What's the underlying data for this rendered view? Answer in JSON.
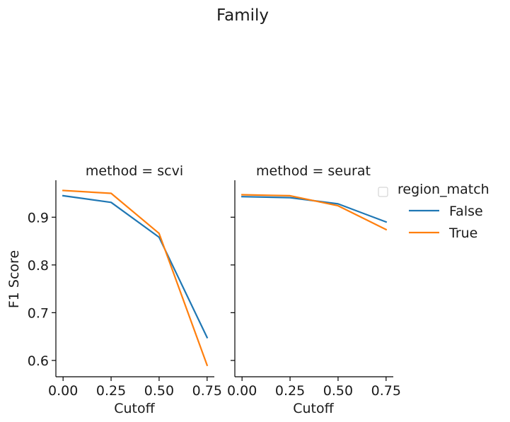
{
  "title": "Family",
  "chart_data": [
    {
      "type": "line",
      "title": "method = scvi",
      "xlabel": "Cutoff",
      "ylabel": "F1 Score",
      "xticks": [
        "0.00",
        "0.25",
        "0.50",
        "0.75"
      ],
      "yticks": [
        "0.6",
        "0.7",
        "0.8",
        "0.9"
      ],
      "xlim": [
        -0.0375,
        0.7875
      ],
      "ylim": [
        0.5658,
        0.9774
      ],
      "series": [
        {
          "name": "False",
          "color": "#1f77b4",
          "x": [
            0.0,
            0.25,
            0.5,
            0.75
          ],
          "y": [
            0.945,
            0.931,
            0.858,
            0.648
          ]
        },
        {
          "name": "True",
          "color": "#ff7f0e",
          "x": [
            0.0,
            0.25,
            0.5,
            0.75
          ],
          "y": [
            0.956,
            0.95,
            0.866,
            0.59
          ]
        }
      ]
    },
    {
      "type": "line",
      "title": "method = seurat",
      "xlabel": "Cutoff",
      "ylabel": "",
      "xticks": [
        "0.00",
        "0.25",
        "0.50",
        "0.75"
      ],
      "yticks": [],
      "xlim": [
        -0.0375,
        0.7875
      ],
      "ylim": [
        0.5658,
        0.9774
      ],
      "series": [
        {
          "name": "False",
          "color": "#1f77b4",
          "x": [
            0.0,
            0.25,
            0.5,
            0.75
          ],
          "y": [
            0.943,
            0.941,
            0.928,
            0.89
          ]
        },
        {
          "name": "True",
          "color": "#ff7f0e",
          "x": [
            0.0,
            0.25,
            0.5,
            0.75
          ],
          "y": [
            0.947,
            0.945,
            0.924,
            0.874
          ]
        }
      ]
    }
  ],
  "legend": {
    "title": "region_match",
    "placement": "right",
    "entries": [
      {
        "label": "False",
        "color": "#1f77b4"
      },
      {
        "label": "True",
        "color": "#ff7f0e"
      }
    ]
  }
}
